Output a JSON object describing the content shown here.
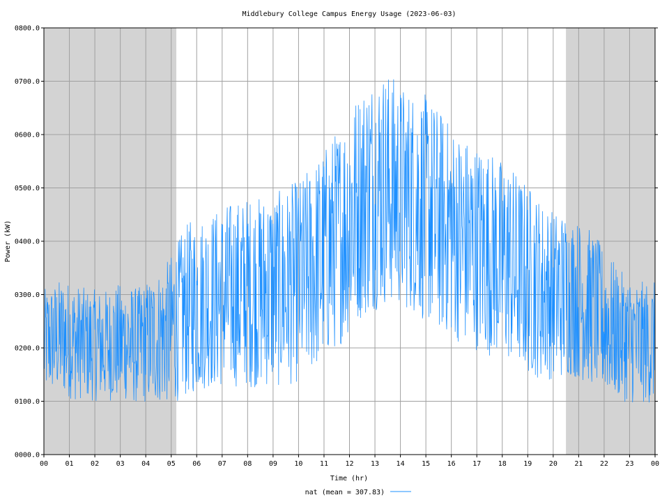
{
  "chart_data": {
    "type": "line",
    "title": "Middlebury College Campus Energy Usage (2023-06-03)",
    "xlabel": "Time (hr)",
    "ylabel": "Power (kW)",
    "xlim": [
      0,
      24
    ],
    "ylim": [
      0,
      800
    ],
    "x_ticks": [
      "00",
      "01",
      "02",
      "03",
      "04",
      "05",
      "06",
      "07",
      "08",
      "09",
      "10",
      "11",
      "12",
      "13",
      "14",
      "15",
      "16",
      "17",
      "18",
      "19",
      "20",
      "21",
      "22",
      "23",
      "00"
    ],
    "y_ticks": [
      "0000.0",
      "0100.0",
      "0200.0",
      "0300.0",
      "0400.0",
      "0500.0",
      "0600.0",
      "0700.0",
      "0800.0"
    ],
    "grid": true,
    "legend_position": "bottom-center",
    "shaded_regions_hr": [
      [
        0,
        5.2
      ],
      [
        20.5,
        24
      ]
    ],
    "colors": {
      "series": "#1e90ff",
      "shade": "#d3d3d3",
      "grid": "#a0a0a0"
    },
    "series": [
      {
        "name": "nat",
        "legend_label": "nat (mean = 307.83)",
        "mean": 307.83,
        "x_hr": [
          0.0,
          0.25,
          0.5,
          0.75,
          1.0,
          1.25,
          1.5,
          1.75,
          2.0,
          2.25,
          2.5,
          2.75,
          3.0,
          3.25,
          3.5,
          3.75,
          4.0,
          4.25,
          4.5,
          4.75,
          5.0,
          5.25,
          5.5,
          5.75,
          6.0,
          6.25,
          6.5,
          6.75,
          7.0,
          7.25,
          7.5,
          7.75,
          8.0,
          8.25,
          8.5,
          8.75,
          9.0,
          9.25,
          9.5,
          9.75,
          10.0,
          10.25,
          10.5,
          10.75,
          11.0,
          11.25,
          11.5,
          11.75,
          12.0,
          12.25,
          12.5,
          12.75,
          13.0,
          13.25,
          13.5,
          13.75,
          14.0,
          14.25,
          14.5,
          14.75,
          15.0,
          15.25,
          15.5,
          15.75,
          16.0,
          16.25,
          16.5,
          16.75,
          17.0,
          17.25,
          17.5,
          17.75,
          18.0,
          18.25,
          18.5,
          18.75,
          19.0,
          19.25,
          19.5,
          19.75,
          20.0,
          20.25,
          20.5,
          20.75,
          21.0,
          21.25,
          21.5,
          21.75,
          22.0,
          22.25,
          22.5,
          22.75,
          23.0,
          23.25,
          23.5,
          23.75,
          24.0
        ],
        "baseline_kw": [
          210,
          215,
          220,
          220,
          215,
          210,
          210,
          205,
          205,
          205,
          205,
          210,
          210,
          210,
          205,
          205,
          210,
          215,
          220,
          225,
          235,
          250,
          265,
          275,
          280,
          285,
          290,
          290,
          295,
          300,
          300,
          305,
          305,
          305,
          305,
          310,
          310,
          310,
          315,
          320,
          325,
          335,
          345,
          360,
          375,
          390,
          405,
          420,
          440,
          460,
          475,
          485,
          495,
          500,
          500,
          495,
          485,
          480,
          475,
          470,
          460,
          450,
          440,
          430,
          420,
          410,
          400,
          395,
          390,
          385,
          380,
          370,
          365,
          360,
          350,
          340,
          330,
          320,
          310,
          305,
          300,
          300,
          300,
          295,
          290,
          285,
          275,
          265,
          250,
          240,
          230,
          220,
          215,
          210,
          210,
          210,
          210
        ],
        "amplitude_kw": [
          100,
          100,
          105,
          110,
          110,
          110,
          105,
          105,
          105,
          105,
          105,
          110,
          110,
          110,
          110,
          110,
          115,
          120,
          125,
          130,
          140,
          150,
          160,
          165,
          165,
          165,
          165,
          170,
          170,
          175,
          175,
          175,
          180,
          180,
          180,
          185,
          185,
          185,
          185,
          190,
          190,
          195,
          195,
          200,
          200,
          205,
          205,
          210,
          215,
          215,
          220,
          225,
          225,
          225,
          220,
          215,
          210,
          210,
          210,
          215,
          215,
          215,
          210,
          205,
          200,
          200,
          200,
          195,
          195,
          195,
          195,
          190,
          190,
          190,
          185,
          180,
          180,
          175,
          170,
          165,
          160,
          160,
          155,
          150,
          150,
          150,
          145,
          140,
          135,
          130,
          125,
          120,
          120,
          115,
          115,
          115,
          115
        ]
      }
    ]
  }
}
